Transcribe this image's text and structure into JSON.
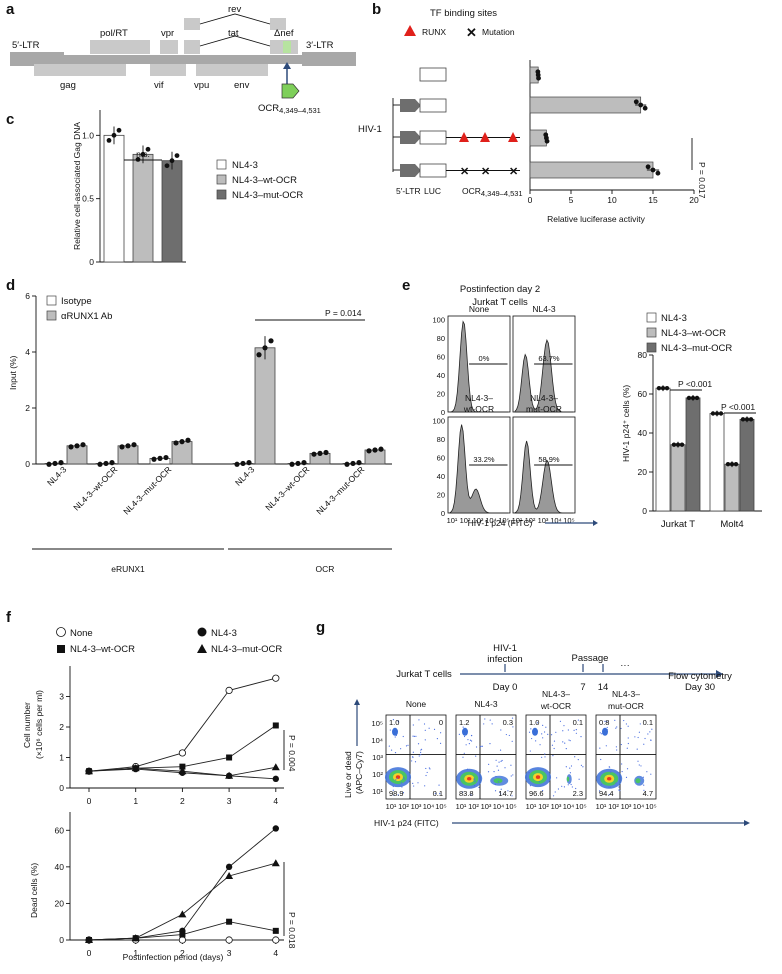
{
  "panel_labels": {
    "a": "a",
    "b": "b",
    "c": "c",
    "d": "d",
    "e": "e",
    "f": "f",
    "g": "g"
  },
  "genome": {
    "genes": [
      "5′-LTR",
      "gag",
      "pol/RT",
      "vif",
      "vpr",
      "tat",
      "rev",
      "vpu",
      "env",
      "Δnef",
      "3′-LTR"
    ],
    "ocr_label": "OCR",
    "ocr_sub": "4,349–4,531"
  },
  "colors": {
    "white": "#ffffff",
    "light": "#bdbdbd",
    "dark": "#6e6e6e",
    "runx": "#e0201b",
    "ocr": "#7ecf5a",
    "arrow": "#2d4a7a"
  },
  "panel_b": {
    "legend_title": "TF binding sites",
    "runx_label": "RUNX",
    "mutation_label": "Mutation",
    "hiv_label": "HIV-1",
    "bottom_labels": [
      "5′-LTR",
      "LUC",
      "OCR"
    ],
    "bottom_sub": "4,349–4,531",
    "p_label": "P = 0.017",
    "xlabel": "Relative luciferase activity",
    "ticks": [
      "0",
      "5",
      "10",
      "15",
      "20"
    ]
  },
  "panel_c": {
    "ylabel": "Relative cell-associated Gag DNA",
    "ticks": [
      "0",
      "0.5",
      "1.0"
    ],
    "ns": "n.s.",
    "legend": [
      "NL4-3",
      "NL4-3–wt-OCR",
      "NL4-3–mut-OCR"
    ]
  },
  "panel_d": {
    "legend": [
      "Isotype",
      "αRUNX1 Ab"
    ],
    "ylabel": "Input (%)",
    "ticks": [
      "0",
      "2",
      "4",
      "6"
    ],
    "p_label": "P = 0.014",
    "groups": [
      "eRUNX1",
      "OCR"
    ],
    "cats": [
      "NL4-3",
      "NL4-3–wt-OCR",
      "NL4-3–mut-OCR",
      "NL4-3",
      "NL4-3–wt-OCR",
      "NL4-3–mut-OCR"
    ]
  },
  "panel_e": {
    "title1": "Postinfection day 2",
    "title2": "Jurkat T cells",
    "hist_titles": [
      "None",
      "NL4-3",
      "NL4-3–",
      "NL4-3–"
    ],
    "hist_titles2": [
      "",
      "",
      "wt-OCR",
      "mut-OCR"
    ],
    "pcts": [
      "0%",
      "63.7%",
      "33.2%",
      "58.9%"
    ],
    "yticks": [
      "0",
      "20",
      "40",
      "60",
      "80",
      "100"
    ],
    "xticks": [
      "10¹",
      "10²",
      "10³",
      "10⁴",
      "10⁵"
    ],
    "xlabel": "HIV-1 p24 (FITC)",
    "bar_legend": [
      "NL4-3",
      "NL4-3–wt-OCR",
      "NL4-3–mut-OCR"
    ],
    "bar_ylabel": "HIV-1 p24⁺ cells (%)",
    "bar_ticks": [
      "0",
      "20",
      "40",
      "60",
      "80"
    ],
    "bar_cats": [
      "Jurkat T",
      "Molt4"
    ],
    "p1": "P <0.001",
    "p2": "P <0.001"
  },
  "panel_f": {
    "legend": [
      "None",
      "NL4-3",
      "NL4-3–wt-OCR",
      "NL4-3–mut-OCR"
    ],
    "ylabel_top": "Cell number",
    "ylabel_top2": "(×10⁶ cells per ml)",
    "ticks_top": [
      "0",
      "1",
      "2",
      "3"
    ],
    "p_top": "P = 0.004",
    "ylabel_bot": "Dead cells (%)",
    "ticks_bot": [
      "0",
      "20",
      "40",
      "60"
    ],
    "p_bot": "P = 0.018",
    "xticks": [
      "0",
      "1",
      "2",
      "3",
      "4"
    ],
    "xlabel": "Postinfection period (days)"
  },
  "panel_g": {
    "cells": "Jurkat T cells",
    "infection1": "HIV-1",
    "infection2": "infection",
    "passage": "Passage",
    "days": [
      "Day 0",
      "7",
      "14",
      "···"
    ],
    "flow1": "Flow cytometry",
    "flow2": "Day 30",
    "titles": [
      "None",
      "NL4-3",
      "NL4-3–",
      "NL4-3–"
    ],
    "titles2": [
      "",
      "",
      "wt-OCR",
      "mut-OCR"
    ],
    "quads": [
      [
        "1.0",
        "0",
        "98.9",
        "0.1"
      ],
      [
        "1.2",
        "0.3",
        "83.8",
        "14.7"
      ],
      [
        "1.0",
        "0.1",
        "96.6",
        "2.3"
      ],
      [
        "0.8",
        "0.1",
        "94.4",
        "4.7"
      ]
    ],
    "yticks": [
      "10¹",
      "10²",
      "10³",
      "10⁴",
      "10⁵"
    ],
    "xticks": [
      "10¹",
      "10²",
      "10³",
      "10⁴",
      "10⁵"
    ],
    "ylabel1": "Live or dead",
    "ylabel2": "(APC–Cy7)",
    "xlabel": "HIV-1 p24 (FITC)"
  },
  "chart_data": [
    {
      "type": "bar",
      "panel": "b",
      "xlabel": "Relative luciferase activity",
      "xlim": [
        0,
        20
      ],
      "orientation": "horizontal",
      "categories": [
        "LUC",
        "5′-LTR-LUC",
        "5′-LTR-LUC-OCR",
        "5′-LTR-LUC-mutOCR"
      ],
      "values": [
        1.0,
        13.5,
        2.0,
        15.0
      ]
    },
    {
      "type": "bar",
      "panel": "c",
      "ylabel": "Relative cell-associated Gag DNA",
      "ylim": [
        0,
        1.2
      ],
      "categories": [
        "NL4-3",
        "NL4-3–wt-OCR",
        "NL4-3–mut-OCR"
      ],
      "values": [
        1.0,
        0.85,
        0.8
      ]
    },
    {
      "type": "bar",
      "panel": "d",
      "ylabel": "Input (%)",
      "ylim": [
        0,
        6
      ],
      "categories": [
        "NL4-3",
        "NL4-3–wt-OCR",
        "NL4-3–mut-OCR",
        "NL4-3",
        "NL4-3–wt-OCR",
        "NL4-3–mut-OCR"
      ],
      "series": [
        {
          "name": "Isotype",
          "values": [
            0.02,
            0.02,
            0.2,
            0.02,
            0.02,
            0.02
          ]
        },
        {
          "name": "αRUNX1 Ab",
          "values": [
            0.65,
            0.65,
            0.8,
            4.15,
            0.38,
            0.5
          ]
        }
      ]
    },
    {
      "type": "bar",
      "panel": "e",
      "ylabel": "HIV-1 p24⁺ cells (%)",
      "ylim": [
        0,
        80
      ],
      "categories": [
        "Jurkat T",
        "Molt4"
      ],
      "series": [
        {
          "name": "NL4-3",
          "values": [
            63,
            50
          ]
        },
        {
          "name": "NL4-3–wt-OCR",
          "values": [
            34,
            24
          ]
        },
        {
          "name": "NL4-3–mut-OCR",
          "values": [
            58,
            47
          ]
        }
      ]
    },
    {
      "type": "line",
      "panel": "f-top",
      "ylabel": "Cell number (×10⁶ cells per ml)",
      "ylim": [
        0,
        4
      ],
      "x": [
        0,
        1,
        2,
        3,
        4
      ],
      "series": [
        {
          "name": "None",
          "values": [
            0.55,
            0.7,
            1.15,
            3.2,
            3.6
          ]
        },
        {
          "name": "NL4-3",
          "values": [
            0.55,
            0.62,
            0.5,
            0.4,
            0.3
          ]
        },
        {
          "name": "NL4-3–wt-OCR",
          "values": [
            0.55,
            0.65,
            0.7,
            1.0,
            2.05
          ]
        },
        {
          "name": "NL4-3–mut-OCR",
          "values": [
            0.55,
            0.65,
            0.55,
            0.4,
            0.68
          ]
        }
      ]
    },
    {
      "type": "line",
      "panel": "f-bottom",
      "ylabel": "Dead cells (%)",
      "xlabel": "Postinfection period (days)",
      "ylim": [
        0,
        70
      ],
      "x": [
        0,
        1,
        2,
        3,
        4
      ],
      "series": [
        {
          "name": "None",
          "values": [
            0,
            0,
            0,
            0,
            0
          ]
        },
        {
          "name": "NL4-3",
          "values": [
            0,
            1,
            5,
            40,
            61
          ]
        },
        {
          "name": "NL4-3–wt-OCR",
          "values": [
            0,
            1,
            3,
            10,
            5
          ]
        },
        {
          "name": "NL4-3–mut-OCR",
          "values": [
            0,
            1,
            14,
            35,
            42
          ]
        }
      ]
    }
  ]
}
